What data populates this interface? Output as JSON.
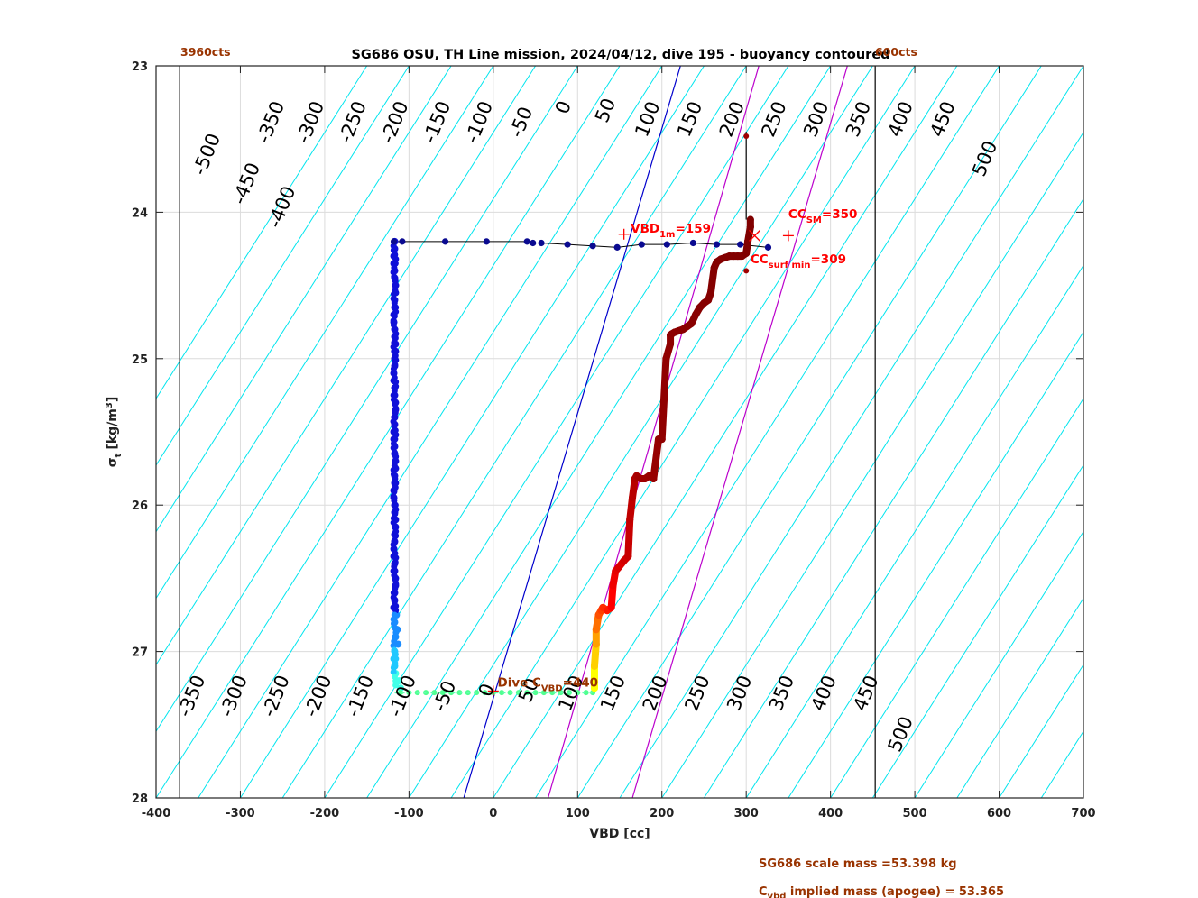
{
  "chart_data": {
    "type": "scatter",
    "title": "SG686 OSU, TH Line mission, 2024/04/12, dive 195 - buoyancy contoured",
    "xlabel": "VBD [cc]",
    "ylabel_main": "σ",
    "ylabel_sub": "t",
    "ylabel_unit": "[kg/m",
    "ylabel_unit_sup": "3",
    "ylabel_unit_end": "]",
    "xlim": [
      -400,
      700
    ],
    "ylim": [
      23,
      28
    ],
    "y_reversed": true,
    "grid": true,
    "x_ticks": [
      -400,
      -300,
      -200,
      -100,
      0,
      100,
      200,
      300,
      400,
      500,
      600,
      700
    ],
    "x_tick_labels": [
      "-400",
      "-300",
      "-200",
      "-100",
      "0",
      "100",
      "200",
      "300",
      "400",
      "500",
      "600",
      "700"
    ],
    "y_ticks": [
      23,
      24,
      25,
      26,
      27,
      28
    ],
    "y_tick_labels": [
      "23",
      "24",
      "25",
      "26",
      "27",
      "28"
    ],
    "vbd_limits": {
      "lower": -372,
      "upper": 453,
      "lower_label": "3960cts",
      "upper_label": "600cts"
    },
    "buoyancy_contours": {
      "step": 50,
      "slope_cc_per_sigma": 110,
      "color": "#00e5ee",
      "zero_color": "#0000cc",
      "top_labels": [
        {
          "text": "-500",
          "x": -333,
          "y": 23.62
        },
        {
          "text": "-450",
          "x": -286,
          "y": 23.82
        },
        {
          "text": "-400",
          "x": -244,
          "y": 23.98
        },
        {
          "text": "-350",
          "x": -257,
          "y": 23.4
        },
        {
          "text": "-300",
          "x": -210,
          "y": 23.4
        },
        {
          "text": "-250",
          "x": -160,
          "y": 23.4
        },
        {
          "text": "-200",
          "x": -110,
          "y": 23.4
        },
        {
          "text": "-150",
          "x": -60,
          "y": 23.4
        },
        {
          "text": "-100",
          "x": -10,
          "y": 23.4
        },
        {
          "text": "-50",
          "x": 40,
          "y": 23.4
        },
        {
          "text": "0",
          "x": 90,
          "y": 23.3
        },
        {
          "text": "50",
          "x": 140,
          "y": 23.32
        },
        {
          "text": "100",
          "x": 190,
          "y": 23.38
        },
        {
          "text": "150",
          "x": 240,
          "y": 23.38
        },
        {
          "text": "200",
          "x": 290,
          "y": 23.38
        },
        {
          "text": "250",
          "x": 340,
          "y": 23.38
        },
        {
          "text": "300",
          "x": 390,
          "y": 23.38
        },
        {
          "text": "350",
          "x": 440,
          "y": 23.38
        },
        {
          "text": "400",
          "x": 490,
          "y": 23.38
        },
        {
          "text": "450",
          "x": 540,
          "y": 23.38
        },
        {
          "text": "500",
          "x": 590,
          "y": 23.65
        }
      ],
      "bottom_labels": [
        {
          "text": "-350",
          "x": -351,
          "y": 27.32
        },
        {
          "text": "-300",
          "x": -301,
          "y": 27.32
        },
        {
          "text": "-250",
          "x": -251,
          "y": 27.32
        },
        {
          "text": "-200",
          "x": -201,
          "y": 27.32
        },
        {
          "text": "-150",
          "x": -151,
          "y": 27.32
        },
        {
          "text": "-100",
          "x": -101,
          "y": 27.32
        },
        {
          "text": "-50",
          "x": -51,
          "y": 27.32
        },
        {
          "text": "0",
          "x": -1,
          "y": 27.28
        },
        {
          "text": "50",
          "x": 49,
          "y": 27.28
        },
        {
          "text": "100",
          "x": 99,
          "y": 27.3
        },
        {
          "text": "150",
          "x": 149,
          "y": 27.3
        },
        {
          "text": "200",
          "x": 199,
          "y": 27.3
        },
        {
          "text": "250",
          "x": 249,
          "y": 27.3
        },
        {
          "text": "300",
          "x": 299,
          "y": 27.3
        },
        {
          "text": "350",
          "x": 349,
          "y": 27.3
        },
        {
          "text": "400",
          "x": 399,
          "y": 27.3
        },
        {
          "text": "450",
          "x": 449,
          "y": 27.3
        },
        {
          "text": "500",
          "x": 490,
          "y": 27.58
        }
      ]
    },
    "magenta_lines": [
      {
        "x_at_28": 65,
        "x_at_23": 315
      },
      {
        "x_at_28": 165,
        "x_at_23": 420
      }
    ],
    "dive_points": {
      "x": [
        -117,
        -118,
        -117,
        -116,
        -117,
        -118,
        -117,
        -116,
        -117,
        -118,
        -117,
        -116,
        -117,
        -118,
        -117,
        -116,
        -117,
        -118,
        -117,
        -116,
        -117,
        -118,
        -117,
        -116,
        -117,
        -118,
        -117,
        -116,
        -117,
        -118,
        -117,
        -116,
        -117,
        -118,
        -117,
        -116,
        -117,
        -118,
        -117,
        -116,
        -117,
        -118,
        -117,
        -116,
        -117,
        -118,
        -117,
        -116,
        -117,
        -118,
        -117,
        -116,
        -117,
        -118,
        -117,
        -116,
        -117,
        -115,
        -114,
        -113,
        -112,
        -110
      ],
      "y": [
        24.2,
        24.3,
        24.4,
        24.5,
        24.6,
        24.7,
        24.8,
        24.9,
        25.0,
        25.1,
        25.2,
        25.3,
        25.4,
        25.5,
        25.6,
        25.7,
        25.8,
        25.9,
        26.0,
        26.1,
        26.2,
        26.3,
        26.4,
        26.5,
        26.6,
        26.7,
        26.8,
        26.9,
        27.0,
        27.05,
        27.1,
        27.15,
        24.25,
        24.35,
        24.45,
        24.55,
        24.65,
        24.75,
        24.85,
        24.95,
        25.05,
        25.15,
        25.25,
        25.35,
        25.45,
        25.55,
        25.65,
        25.75,
        25.85,
        25.95,
        26.05,
        26.15,
        26.25,
        26.35,
        26.45,
        26.55,
        26.65,
        26.75,
        26.85,
        26.95,
        27.2,
        27.25
      ]
    },
    "bottom_points": {
      "x": [
        -110,
        -100,
        -90,
        -80,
        -70,
        -60,
        -50,
        -40,
        -30,
        -20,
        -10,
        0,
        10,
        20,
        30,
        40,
        50,
        60,
        70,
        80,
        90,
        100,
        110,
        118
      ],
      "y": [
        27.28,
        27.28,
        27.28,
        27.28,
        27.28,
        27.28,
        27.28,
        27.28,
        27.28,
        27.28,
        27.28,
        27.28,
        27.28,
        27.28,
        27.28,
        27.28,
        27.28,
        27.28,
        27.28,
        27.28,
        27.28,
        27.28,
        27.28,
        27.28
      ]
    },
    "climb_path": {
      "x": [
        120,
        120,
        122,
        122,
        125,
        128,
        130,
        135,
        140,
        142,
        145,
        148,
        155,
        160,
        162,
        165,
        168,
        170,
        172,
        175,
        180,
        185,
        190,
        196,
        198,
        200,
        205,
        210,
        210,
        212,
        215,
        220,
        225,
        230,
        235,
        240,
        245,
        250,
        255,
        258,
        262,
        265,
        270,
        275,
        280,
        285,
        290,
        295,
        300,
        302,
        305,
        305
      ],
      "y": [
        27.25,
        27.1,
        26.95,
        26.85,
        26.75,
        26.72,
        26.7,
        26.72,
        26.7,
        26.55,
        26.45,
        26.43,
        26.38,
        26.35,
        26.1,
        25.95,
        25.82,
        25.8,
        25.81,
        25.82,
        25.82,
        25.8,
        25.82,
        25.55,
        25.55,
        25.55,
        25.0,
        24.9,
        24.84,
        24.83,
        24.82,
        24.81,
        24.8,
        24.78,
        24.76,
        24.7,
        24.65,
        24.62,
        24.6,
        24.55,
        24.38,
        24.34,
        24.32,
        24.31,
        24.3,
        24.3,
        24.3,
        24.3,
        24.28,
        24.2,
        24.1,
        24.05
      ],
      "colors": [
        "#ffff00",
        "#ffd000",
        "#ffa000",
        "#ff7000",
        "#ff5000",
        "#ff4000",
        "#ff2a00",
        "#ff1800",
        "#ff0000",
        "#f00000",
        "#e60000",
        "#dc0000",
        "#d20000",
        "#c80000",
        "#c00000",
        "#b80000",
        "#b00000",
        "#aa0000",
        "#a40000",
        "#a00000",
        "#9c0000",
        "#980000",
        "#960000",
        "#940000",
        "#920000",
        "#900000",
        "#900000",
        "#8e0000",
        "#8e0000",
        "#8c0000",
        "#8c0000",
        "#8a0000",
        "#8a0000",
        "#880000",
        "#880000",
        "#880000",
        "#860000",
        "#860000",
        "#860000",
        "#840000",
        "#840000",
        "#840000",
        "#840000",
        "#820000",
        "#820000",
        "#820000",
        "#820000",
        "#820000",
        "#800000",
        "#800000",
        "#800000",
        "#800000"
      ]
    },
    "surface_track": {
      "x": [
        -118,
        -108,
        -57,
        -8,
        40,
        47,
        57,
        88,
        118,
        147,
        176,
        206,
        237,
        265,
        293,
        326
      ],
      "y": [
        24.2,
        24.2,
        24.2,
        24.2,
        24.2,
        24.21,
        24.21,
        24.22,
        24.23,
        24.24,
        24.22,
        24.22,
        24.21,
        24.22,
        24.22,
        24.24
      ]
    },
    "vertical_line": {
      "x": 300,
      "y_top": 23.45,
      "y_bottom": 24.05
    },
    "small_dots": [
      {
        "x": 300,
        "y": 23.48
      },
      {
        "x": 300,
        "y": 24.4
      }
    ],
    "markers": [
      {
        "symbol": "x",
        "x": 310,
        "y": 24.16,
        "color": "#ff0000"
      },
      {
        "symbol": "+",
        "x": 350,
        "y": 24.16,
        "color": "#ff0000"
      },
      {
        "symbol": "+",
        "x": 155,
        "y": 24.15,
        "color": "#ff0000"
      },
      {
        "symbol": "+",
        "x": 0,
        "y": 27.27,
        "color": "#ff0000"
      }
    ],
    "annotations": [
      {
        "id": "vbd1m",
        "text": "VBD",
        "sub": "1m",
        "suffix": "=159",
        "x": 163,
        "y": 24.14,
        "color": "#ff0000"
      },
      {
        "id": "ccsm",
        "text": "CC",
        "sub": "SM",
        "suffix": "=350",
        "x": 350,
        "y": 24.04,
        "color": "#ff0000"
      },
      {
        "id": "ccsurf",
        "text": "CC",
        "sub": "surf min",
        "suffix": "=309",
        "x": 305,
        "y": 24.35,
        "color": "#ff0000"
      },
      {
        "id": "dive",
        "text": "Dive C",
        "sub": "VBD",
        "suffix": "=440",
        "x": 5,
        "y": 27.24,
        "color": "#993300"
      }
    ]
  },
  "footer": {
    "scale_mass": "SG686 scale mass =53.398 kg",
    "implied_main": "C",
    "implied_sub": "vbd",
    "implied_rest": " implied mass (apogee) = 53.365"
  }
}
